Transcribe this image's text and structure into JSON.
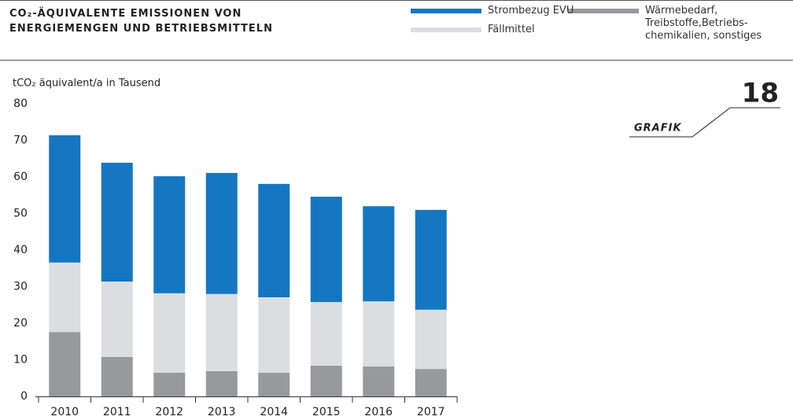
{
  "chart_data": {
    "type": "stacked_bar",
    "title_lines": [
      "CO₂-ÄQUIVALENTE EMISSIONEN VON",
      "ENERGIEMENGEN UND BETRIEBSMITTELN"
    ],
    "y_axis_label": "tCO₂ äquivalent/a in Tausend",
    "annotations": [
      "18",
      "GRAFIK"
    ],
    "categories": [
      "2010",
      "2011",
      "2012",
      "2013",
      "2014",
      "2015",
      "2016",
      "2017"
    ],
    "series": [
      {
        "name": "Wärmebedarf, Treibstoffe,Betriebs-chemikalien, sonstiges",
        "color": "#98999d",
        "values": [
          17.6,
          10.8,
          6.5,
          6.9,
          6.5,
          8.4,
          8.2,
          7.5
        ]
      },
      {
        "name": "Fällmittel",
        "color": "#dcdde0",
        "values": [
          19.0,
          20.6,
          21.7,
          21.1,
          20.6,
          17.4,
          17.8,
          16.2
        ]
      },
      {
        "name": "Strombezug EVU",
        "color": "#1577c2",
        "values": [
          34.8,
          32.5,
          32.0,
          33.1,
          31.0,
          28.8,
          26.0,
          27.3
        ]
      }
    ],
    "ylim": [
      0,
      80
    ],
    "yticks": [
      0,
      10,
      20,
      30,
      40,
      50,
      60,
      70,
      80
    ],
    "grid": false
  }
}
